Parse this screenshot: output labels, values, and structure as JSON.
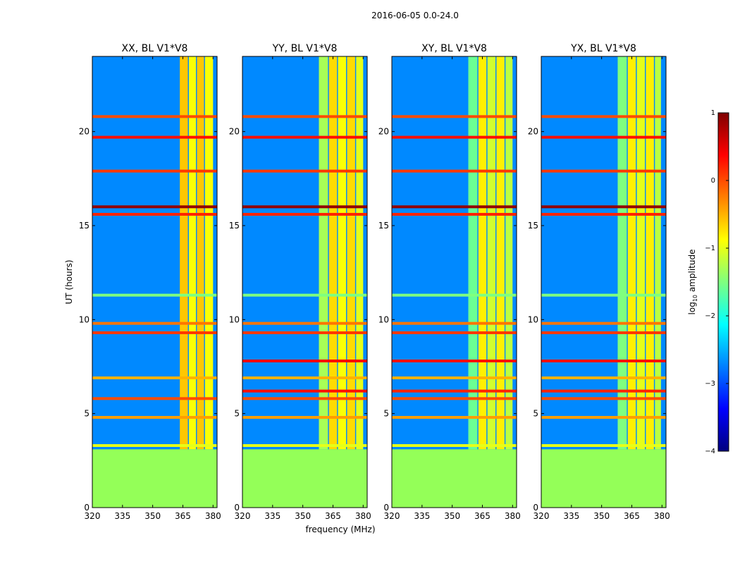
{
  "figure": {
    "suptitle": "2016-06-05 0.0-24.0",
    "ylabel": "UT (hours)",
    "xlabel": "frequency (MHz)"
  },
  "colors": {
    "colormap": [
      "#00007f",
      "#0000ff",
      "#007fff",
      "#00ffff",
      "#7fff7f",
      "#ffff00",
      "#ff7f00",
      "#ff0000",
      "#7f0000"
    ],
    "no_data": "#94ff58",
    "background": "#1530c8"
  },
  "colorbar": {
    "label_prefix": "log",
    "label_subscript": "10",
    "label_suffix": " amplitude",
    "min": -4,
    "max": 1,
    "ticks": [
      1,
      0,
      -1,
      -2,
      -3,
      -4
    ],
    "tick_labels": [
      "1",
      "0",
      "−1",
      "−2",
      "−3",
      "−4"
    ]
  },
  "chart_data": [
    {
      "type": "heatmap",
      "title": "XX, BL V1*V8",
      "xlabel": "frequency (MHz)",
      "ylabel": "UT (hours)",
      "xlim": [
        320,
        382
      ],
      "ylim": [
        0,
        24
      ],
      "xticks": [
        320,
        335,
        350,
        365,
        380
      ],
      "yticks": [
        0,
        5,
        10,
        15,
        20
      ],
      "value_units": "log10 amplitude",
      "background_level": -2.7,
      "no_data_until_ut": 3.1,
      "band": {
        "start": 363.5,
        "end": 381.5,
        "columns": [
          [
            363.5,
            367.5,
            -0.6
          ],
          [
            368.0,
            371.5,
            -0.9
          ],
          [
            372.0,
            375.5,
            -0.6
          ],
          [
            376.0,
            380.0,
            -0.9
          ]
        ]
      },
      "rfi_lines": [
        {
          "ut": 20.8,
          "level": 0.0
        },
        {
          "ut": 19.7,
          "level": 0.3
        },
        {
          "ut": 17.9,
          "level": 0.1
        },
        {
          "ut": 16.0,
          "level": 0.9
        },
        {
          "ut": 15.6,
          "level": 0.2
        },
        {
          "ut": 11.3,
          "level": -1.5
        },
        {
          "ut": 9.8,
          "level": -0.2
        },
        {
          "ut": 9.3,
          "level": 0.1
        },
        {
          "ut": 6.9,
          "level": -0.5
        },
        {
          "ut": 5.8,
          "level": 0.0
        },
        {
          "ut": 4.8,
          "level": -0.4
        },
        {
          "ut": 3.3,
          "level": -1.0
        }
      ]
    },
    {
      "type": "heatmap",
      "title": "YY, BL V1*V8",
      "xlabel": "frequency (MHz)",
      "ylabel": "UT (hours)",
      "xlim": [
        320,
        382
      ],
      "ylim": [
        0,
        24
      ],
      "xticks": [
        320,
        335,
        350,
        365,
        380
      ],
      "yticks": [
        0,
        5,
        10,
        15,
        20
      ],
      "value_units": "log10 amplitude",
      "background_level": -2.7,
      "no_data_until_ut": 3.1,
      "band": {
        "start": 358.0,
        "end": 380.0,
        "columns": [
          [
            358.0,
            362.5,
            -1.3
          ],
          [
            363.0,
            367.0,
            -0.7
          ],
          [
            367.5,
            371.5,
            -0.9
          ],
          [
            372.0,
            376.0,
            -0.7
          ],
          [
            376.5,
            380.0,
            -1.0
          ]
        ]
      },
      "rfi_lines": [
        {
          "ut": 20.8,
          "level": 0.0
        },
        {
          "ut": 19.7,
          "level": 0.3
        },
        {
          "ut": 17.9,
          "level": 0.1
        },
        {
          "ut": 16.0,
          "level": 0.9
        },
        {
          "ut": 15.6,
          "level": 0.2
        },
        {
          "ut": 11.3,
          "level": -1.5
        },
        {
          "ut": 9.8,
          "level": -0.2
        },
        {
          "ut": 9.3,
          "level": 0.1
        },
        {
          "ut": 7.8,
          "level": 0.4
        },
        {
          "ut": 6.9,
          "level": -0.5
        },
        {
          "ut": 6.2,
          "level": 0.3
        },
        {
          "ut": 5.8,
          "level": 0.0
        },
        {
          "ut": 4.8,
          "level": -0.4
        },
        {
          "ut": 3.3,
          "level": -1.0
        }
      ]
    },
    {
      "type": "heatmap",
      "title": "XY, BL V1*V8",
      "xlabel": "frequency (MHz)",
      "ylabel": "UT (hours)",
      "xlim": [
        320,
        382
      ],
      "ylim": [
        0,
        24
      ],
      "xticks": [
        320,
        335,
        350,
        365,
        380
      ],
      "yticks": [
        0,
        5,
        10,
        15,
        20
      ],
      "value_units": "log10 amplitude",
      "background_level": -2.7,
      "no_data_until_ut": 3.1,
      "band": {
        "start": 358.0,
        "end": 380.0,
        "columns": [
          [
            358.0,
            362.5,
            -1.6
          ],
          [
            363.0,
            367.0,
            -0.8
          ],
          [
            367.5,
            371.5,
            -1.1
          ],
          [
            372.0,
            376.0,
            -0.8
          ],
          [
            376.5,
            380.0,
            -1.2
          ]
        ]
      },
      "rfi_lines": [
        {
          "ut": 20.8,
          "level": 0.0
        },
        {
          "ut": 19.7,
          "level": 0.3
        },
        {
          "ut": 17.9,
          "level": 0.1
        },
        {
          "ut": 16.0,
          "level": 0.9
        },
        {
          "ut": 15.6,
          "level": 0.2
        },
        {
          "ut": 11.3,
          "level": -1.5
        },
        {
          "ut": 9.8,
          "level": -0.2
        },
        {
          "ut": 9.3,
          "level": 0.1
        },
        {
          "ut": 7.8,
          "level": 0.3
        },
        {
          "ut": 6.9,
          "level": -0.5
        },
        {
          "ut": 6.2,
          "level": 0.2
        },
        {
          "ut": 5.8,
          "level": 0.0
        },
        {
          "ut": 4.8,
          "level": -0.4
        },
        {
          "ut": 3.3,
          "level": -1.0
        }
      ]
    },
    {
      "type": "heatmap",
      "title": "YX, BL V1*V8",
      "xlabel": "frequency (MHz)",
      "ylabel": "UT (hours)",
      "xlim": [
        320,
        382
      ],
      "ylim": [
        0,
        24
      ],
      "xticks": [
        320,
        335,
        350,
        365,
        380
      ],
      "yticks": [
        0,
        5,
        10,
        15,
        20
      ],
      "value_units": "log10 amplitude",
      "background_level": -2.7,
      "no_data_until_ut": 3.1,
      "band": {
        "start": 358.0,
        "end": 379.5,
        "columns": [
          [
            358.0,
            362.5,
            -1.5
          ],
          [
            363.0,
            367.0,
            -0.8
          ],
          [
            367.5,
            371.5,
            -1.0
          ],
          [
            372.0,
            376.0,
            -0.8
          ],
          [
            376.5,
            379.5,
            -1.2
          ]
        ]
      },
      "rfi_lines": [
        {
          "ut": 20.8,
          "level": 0.0
        },
        {
          "ut": 19.7,
          "level": 0.3
        },
        {
          "ut": 17.9,
          "level": 0.1
        },
        {
          "ut": 16.0,
          "level": 0.9
        },
        {
          "ut": 15.6,
          "level": 0.2
        },
        {
          "ut": 11.3,
          "level": -1.5
        },
        {
          "ut": 9.8,
          "level": -0.2
        },
        {
          "ut": 9.3,
          "level": 0.1
        },
        {
          "ut": 7.8,
          "level": 0.3
        },
        {
          "ut": 6.9,
          "level": -0.5
        },
        {
          "ut": 6.2,
          "level": 0.2
        },
        {
          "ut": 5.8,
          "level": 0.0
        },
        {
          "ut": 4.8,
          "level": -0.4
        },
        {
          "ut": 3.3,
          "level": -1.0
        }
      ]
    }
  ]
}
